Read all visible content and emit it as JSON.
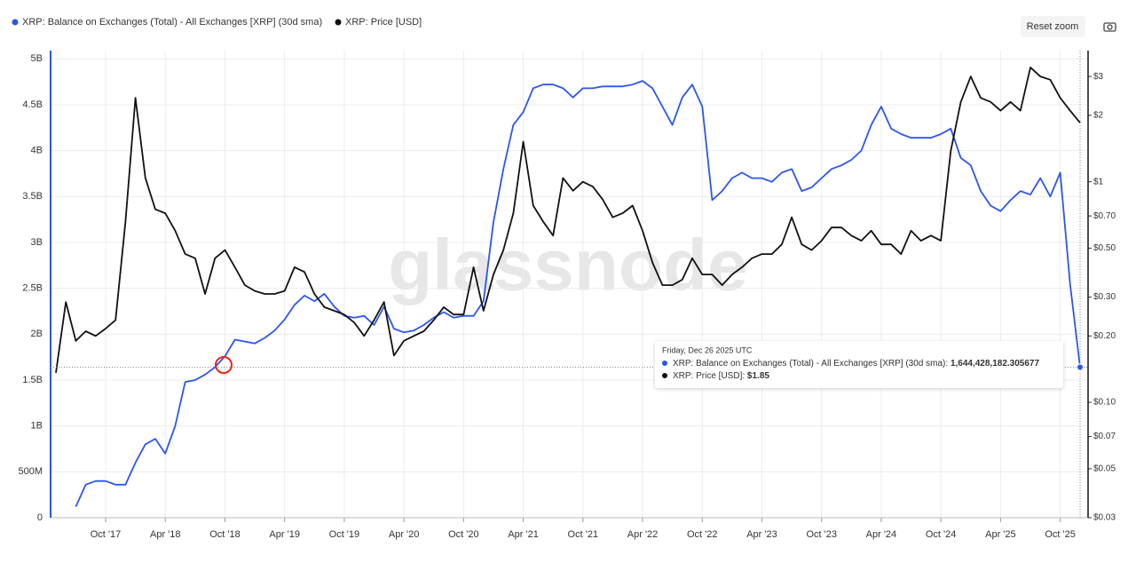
{
  "chart_data": {
    "type": "line",
    "legend": [
      "XRP: Balance on Exchanges (Total) - All Exchanges [XRP] (30d sma)",
      "XRP: Price [USD]"
    ],
    "reset_zoom": "Reset zoom",
    "watermark": "glassnode",
    "x": [
      "2017-05",
      "2017-06",
      "2017-07",
      "2017-08",
      "2017-09",
      "2017-10",
      "2017-11",
      "2017-12",
      "2018-01",
      "2018-02",
      "2018-03",
      "2018-04",
      "2018-05",
      "2018-06",
      "2018-07",
      "2018-08",
      "2018-09",
      "2018-10",
      "2018-11",
      "2018-12",
      "2019-01",
      "2019-02",
      "2019-03",
      "2019-04",
      "2019-05",
      "2019-06",
      "2019-07",
      "2019-08",
      "2019-09",
      "2019-10",
      "2019-11",
      "2019-12",
      "2020-01",
      "2020-02",
      "2020-03",
      "2020-04",
      "2020-05",
      "2020-06",
      "2020-07",
      "2020-08",
      "2020-09",
      "2020-10",
      "2020-11",
      "2020-12",
      "2021-01",
      "2021-02",
      "2021-03",
      "2021-04",
      "2021-05",
      "2021-06",
      "2021-07",
      "2021-08",
      "2021-09",
      "2021-10",
      "2021-11",
      "2021-12",
      "2022-01",
      "2022-02",
      "2022-03",
      "2022-04",
      "2022-05",
      "2022-06",
      "2022-07",
      "2022-08",
      "2022-09",
      "2022-10",
      "2022-11",
      "2022-12",
      "2023-01",
      "2023-02",
      "2023-03",
      "2023-04",
      "2023-05",
      "2023-06",
      "2023-07",
      "2023-08",
      "2023-09",
      "2023-10",
      "2023-11",
      "2023-12",
      "2024-01",
      "2024-02",
      "2024-03",
      "2024-04",
      "2024-05",
      "2024-06",
      "2024-07",
      "2024-08",
      "2024-09",
      "2024-10",
      "2024-11",
      "2024-12",
      "2025-01",
      "2025-02",
      "2025-03",
      "2025-04",
      "2025-05",
      "2025-06",
      "2025-07",
      "2025-08",
      "2025-09",
      "2025-10",
      "2025-11",
      "2025-12"
    ],
    "xlim": [
      "2017-05",
      "2025-12"
    ],
    "xticks": [
      {
        "value": "2017-10",
        "label": "Oct '17"
      },
      {
        "value": "2018-04",
        "label": "Apr '18"
      },
      {
        "value": "2018-10",
        "label": "Oct '18"
      },
      {
        "value": "2019-04",
        "label": "Apr '19"
      },
      {
        "value": "2019-10",
        "label": "Oct '19"
      },
      {
        "value": "2020-04",
        "label": "Apr '20"
      },
      {
        "value": "2020-10",
        "label": "Oct '20"
      },
      {
        "value": "2021-04",
        "label": "Apr '21"
      },
      {
        "value": "2021-10",
        "label": "Oct '21"
      },
      {
        "value": "2022-04",
        "label": "Apr '22"
      },
      {
        "value": "2022-10",
        "label": "Oct '22"
      },
      {
        "value": "2023-04",
        "label": "Apr '23"
      },
      {
        "value": "2023-10",
        "label": "Oct '23"
      },
      {
        "value": "2024-04",
        "label": "Apr '24"
      },
      {
        "value": "2024-10",
        "label": "Oct '24"
      },
      {
        "value": "2025-04",
        "label": "Apr '25"
      },
      {
        "value": "2025-10",
        "label": "Oct '25"
      }
    ],
    "ylim": [
      0,
      5.09
    ],
    "yticks": [
      0,
      {
        "value": 0.5,
        "label": "500M"
      },
      {
        "value": 1,
        "label": "1B"
      },
      {
        "value": 1.5,
        "label": "1.5B"
      },
      {
        "value": 2,
        "label": "2B"
      },
      {
        "value": 2.5,
        "label": "2.5B"
      },
      {
        "value": 3,
        "label": "3B"
      },
      {
        "value": 3.5,
        "label": "3.5B"
      },
      {
        "value": 4,
        "label": "4B"
      },
      {
        "value": 4.5,
        "label": "4.5B"
      },
      {
        "value": 5,
        "label": "5B"
      }
    ],
    "y2lim": [
      0.03,
      3.93
    ],
    "y2log": true,
    "y2ticks": [
      {
        "value": 0.03,
        "label": "$0.03"
      },
      {
        "value": 0.05,
        "label": "$0.05"
      },
      {
        "value": 0.07,
        "label": "$0.07"
      },
      {
        "value": 0.1,
        "label": "$0.10"
      },
      {
        "value": 0.2,
        "label": "$0.20"
      },
      {
        "value": 0.3,
        "label": "$0.30"
      },
      {
        "value": 0.5,
        "label": "$0.50"
      },
      {
        "value": 0.7,
        "label": "$0.70"
      },
      {
        "value": 1,
        "label": "$1"
      },
      {
        "value": 2,
        "label": "$2"
      },
      {
        "value": 3,
        "label": "$3"
      }
    ],
    "grid": true,
    "series": [
      {
        "name": "XRP: Balance on Exchanges (Total) - All Exchanges [XRP] (30d sma)",
        "color": "#2b55f0",
        "values": [
          null,
          null,
          0.12,
          0.36,
          0.4,
          0.4,
          0.36,
          0.36,
          0.6,
          0.8,
          0.86,
          0.7,
          1.0,
          1.48,
          1.5,
          1.56,
          1.64,
          1.76,
          1.94,
          1.92,
          1.9,
          1.96,
          2.04,
          2.16,
          2.32,
          2.42,
          2.36,
          2.44,
          2.3,
          2.2,
          2.18,
          2.2,
          2.1,
          2.3,
          2.06,
          2.02,
          2.04,
          2.1,
          2.18,
          2.24,
          2.18,
          2.2,
          2.2,
          2.36,
          3.22,
          3.8,
          4.28,
          4.42,
          4.68,
          4.72,
          4.72,
          4.68,
          4.58,
          4.68,
          4.68,
          4.7,
          4.7,
          4.7,
          4.72,
          4.76,
          4.68,
          4.48,
          4.28,
          4.58,
          4.72,
          4.48,
          3.46,
          3.56,
          3.7,
          3.76,
          3.7,
          3.7,
          3.66,
          3.76,
          3.8,
          3.56,
          3.6,
          3.7,
          3.8,
          3.84,
          3.9,
          4.0,
          4.28,
          4.48,
          4.24,
          4.18,
          4.14,
          4.14,
          4.14,
          4.18,
          4.24,
          3.92,
          3.84,
          3.56,
          3.4,
          3.34,
          3.46,
          3.56,
          3.52,
          3.7,
          3.5,
          3.76,
          2.54,
          1.64
        ]
      },
      {
        "name": "XRP: Price [USD]",
        "color": "#111111",
        "axis": "y2",
        "values": [
          0.136,
          0.285,
          0.19,
          0.21,
          0.2,
          0.216,
          0.236,
          0.66,
          2.4,
          1.04,
          0.75,
          0.72,
          0.6,
          0.47,
          0.45,
          0.31,
          0.45,
          0.49,
          0.41,
          0.34,
          0.32,
          0.31,
          0.31,
          0.32,
          0.41,
          0.39,
          0.31,
          0.27,
          0.26,
          0.25,
          0.23,
          0.2,
          0.236,
          0.285,
          0.163,
          0.19,
          0.2,
          0.21,
          0.236,
          0.27,
          0.25,
          0.25,
          0.41,
          0.26,
          0.38,
          0.49,
          0.72,
          1.52,
          0.78,
          0.66,
          0.57,
          1.04,
          0.91,
          1.0,
          0.95,
          0.83,
          0.69,
          0.72,
          0.78,
          0.6,
          0.43,
          0.34,
          0.34,
          0.36,
          0.45,
          0.38,
          0.38,
          0.34,
          0.38,
          0.41,
          0.45,
          0.47,
          0.47,
          0.52,
          0.69,
          0.52,
          0.49,
          0.54,
          0.62,
          0.62,
          0.57,
          0.54,
          0.6,
          0.52,
          0.52,
          0.47,
          0.6,
          0.54,
          0.57,
          0.54,
          1.38,
          2.3,
          3.0,
          2.4,
          2.3,
          2.1,
          2.3,
          2.1,
          3.3,
          3.0,
          2.9,
          2.4,
          2.1,
          1.85
        ]
      }
    ],
    "tooltip": {
      "date": "Friday, Dec 26 2025 UTC",
      "rows": [
        {
          "name": "XRP: Balance on Exchanges (Total) - All Exchanges [XRP] (30d sma):",
          "value": "1,644,428,182.305677"
        },
        {
          "name": "XRP: Price [USD]:",
          "value": "$1.85"
        }
      ]
    }
  }
}
